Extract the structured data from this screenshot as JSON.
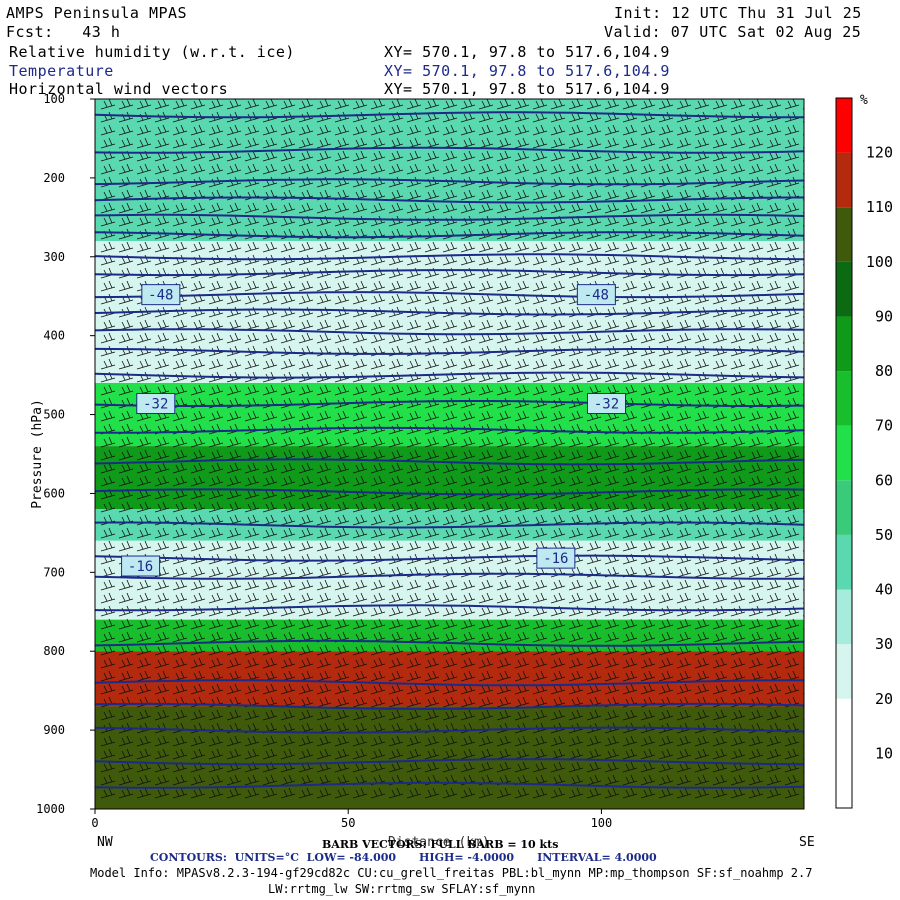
{
  "header": {
    "model": "AMPS Peninsula MPAS",
    "fcst_label": "Fcst:",
    "fcst_value": "43 h",
    "init_label": "Init:",
    "init_value": "12 UTC Thu 31 Jul 25",
    "valid_label": "Valid:",
    "valid_value": "07 UTC Sat 02 Aug 25",
    "fields": [
      {
        "name": "Relative humidity (w.r.t. ice)",
        "xy": "XY= 570.1, 97.8 to 517.6,104.9"
      },
      {
        "name": "Temperature",
        "xy": "XY= 570.1, 97.8 to 517.6,104.9"
      },
      {
        "name": "Horizontal wind vectors",
        "xy": "XY= 570.1, 97.8 to 517.6,104.9"
      }
    ]
  },
  "chart_data": {
    "type": "heatmap",
    "description_fields": [
      "Relative humidity (w.r.t. ice)",
      "Temperature",
      "Horizontal wind vectors"
    ],
    "ylabel": "Pressure (hPa)",
    "xlabel": "Distance (km)",
    "x_ticks": [
      0,
      50,
      100
    ],
    "xlim": [
      0,
      140
    ],
    "y_ticks": [
      100,
      200,
      300,
      400,
      500,
      600,
      700,
      800,
      900,
      1000
    ],
    "ylim": [
      1000,
      100
    ],
    "x_end_labels": {
      "left": "NW",
      "right": "SE"
    },
    "colorbar": {
      "unit": "%",
      "levels": [
        10,
        20,
        30,
        40,
        50,
        60,
        70,
        80,
        90,
        100,
        110,
        120
      ],
      "colors": [
        "#ffffff",
        "#ffffff",
        "#d6f5ee",
        "#a6ecdc",
        "#5ad8b0",
        "#3acb7a",
        "#22e04a",
        "#18be2c",
        "#0f9a1a",
        "#0c6b12",
        "#3f5a0a",
        "#b32a0f",
        "#ff0000"
      ]
    },
    "temperature_contour_labels": [
      {
        "label": "-48",
        "x": 13,
        "p": 348
      },
      {
        "label": "-48",
        "x": 99,
        "p": 348
      },
      {
        "label": "-32",
        "x": 12,
        "p": 486
      },
      {
        "label": "-32",
        "x": 101,
        "p": 486
      },
      {
        "label": "-16",
        "x": 9,
        "p": 692
      },
      {
        "label": "-16",
        "x": 91,
        "p": 682
      }
    ],
    "temperature_contour_pressures": [
      120,
      165,
      205,
      228,
      250,
      272,
      300,
      320,
      348,
      370,
      395,
      420,
      450,
      486,
      520,
      560,
      598,
      640,
      682,
      705,
      745,
      790,
      840,
      870,
      900,
      940,
      970
    ],
    "rh_bands": [
      {
        "p_top": 100,
        "p_bot": 280,
        "rh": 40
      },
      {
        "p_top": 280,
        "p_bot": 330,
        "rh": 20
      },
      {
        "p_top": 330,
        "p_bot": 460,
        "rh": 20
      },
      {
        "p_top": 460,
        "p_bot": 540,
        "rh": 65
      },
      {
        "p_top": 540,
        "p_bot": 620,
        "rh": 80
      },
      {
        "p_top": 620,
        "p_bot": 660,
        "rh": 45
      },
      {
        "p_top": 660,
        "p_bot": 760,
        "rh": 20
      },
      {
        "p_top": 760,
        "p_bot": 800,
        "rh": 75
      },
      {
        "p_top": 800,
        "p_bot": 870,
        "rh": 115
      },
      {
        "p_top": 870,
        "p_bot": 1000,
        "rh": 105
      }
    ],
    "barb_legend": "BARB VECTORS: FULL BARB = 10 kts",
    "contours_info": {
      "label": "CONTOURS:",
      "units": "UNITS=°C",
      "low": "LOW= -84.000",
      "high": "HIGH= -4.0000",
      "interval": "INTERVAL= 4.0000"
    }
  },
  "footer": {
    "model_info_1": "Model Info: MPASv8.2.3-194-gf29cd82c CU:cu_grell_freitas PBL:bl_mynn MP:mp_thompson SF:sf_noahmp 2.7",
    "model_info_2": "LW:rrtmg_lw SW:rrtmg_sw SFLAY:sf_mynn"
  }
}
